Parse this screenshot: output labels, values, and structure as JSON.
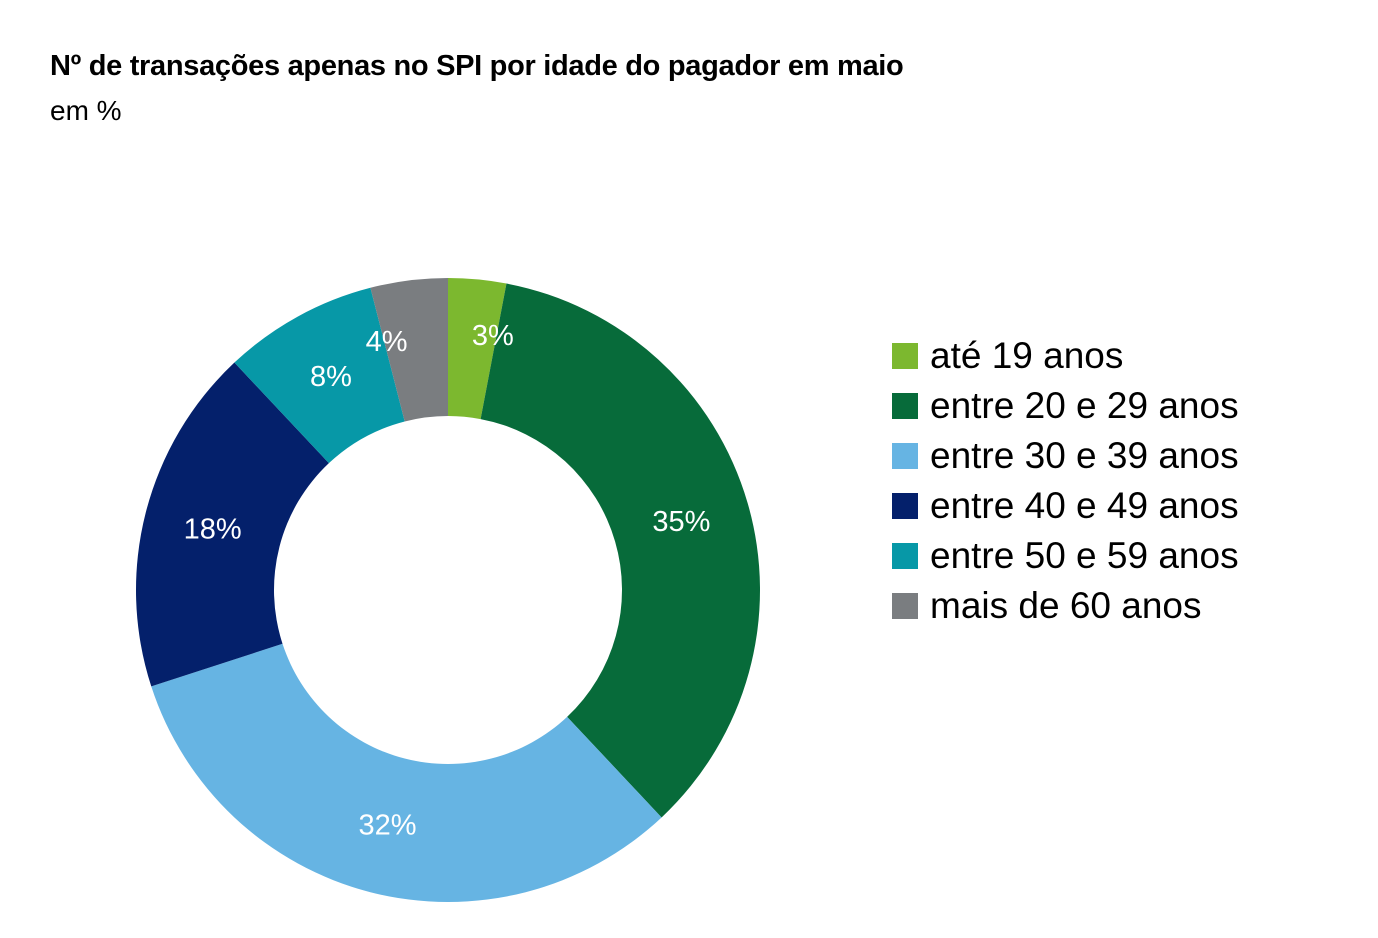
{
  "title": "Nº de transações apenas no SPI por idade do pagador em maio",
  "subtitle": "em %",
  "chart_data": {
    "type": "pie",
    "variant": "donut",
    "title": "Nº de transações apenas no SPI por idade do pagador em maio",
    "subtitle": "em %",
    "unit": "%",
    "legend_position": "right",
    "categories": [
      "até 19 anos",
      "entre 20 e 29 anos",
      "entre 30 e 39 anos",
      "entre 40 e 49 anos",
      "entre 50 e 59 anos",
      "mais de 60 anos"
    ],
    "values": [
      3,
      35,
      32,
      18,
      8,
      4
    ],
    "labels": [
      "3%",
      "35%",
      "32%",
      "18%",
      "8%",
      "4%"
    ],
    "colors": [
      "#7CB82F",
      "#076B3A",
      "#66B4E3",
      "#04206B",
      "#0798A7",
      "#7A7D80"
    ]
  }
}
